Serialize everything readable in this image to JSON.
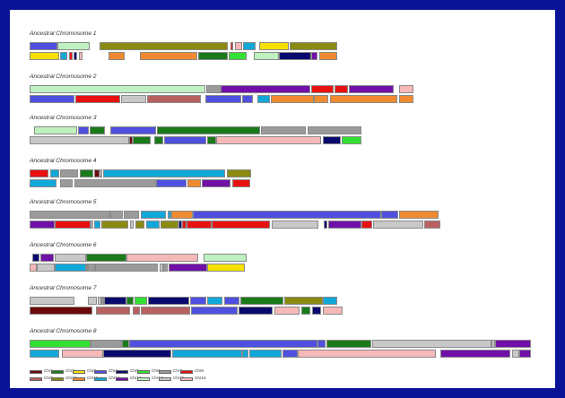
{
  "colors": {
    "Chr1": "#6b0a0a",
    "Chr2": "#1a7a1a",
    "Chr3": "#f5e000",
    "Chr4": "#4f4fe0",
    "Chr5": "#0a0a6e",
    "Chr6": "#33e033",
    "Chr7": "#9a9a9a",
    "Chr8": "#e81010",
    "Chr9": "#b86060",
    "Chr10": "#8a8a10",
    "Chr11": "#f08a30",
    "Chr12": "#10a8d8",
    "Chr13": "#7010a8",
    "Chr14": "#bff0bf",
    "Chr15": "#c8c8c8",
    "Chr16": "#f7b8b8"
  },
  "chromosomes": [
    {
      "title": "Ancestral Chromosome 1",
      "rows": [
        [
          [
            "Chr4",
            0,
            31
          ],
          [
            "Chr14",
            31,
            36
          ],
          [
            "Chr10",
            78,
            143
          ],
          [
            "Chr8",
            224,
            3
          ],
          [
            "Chr16",
            229,
            8
          ],
          [
            "Chr12",
            238,
            14
          ],
          [
            "Chr3",
            256,
            33
          ],
          [
            "Chr10",
            290,
            53
          ]
        ],
        [
          [
            "Chr3",
            0,
            33
          ],
          [
            "Chr12",
            34,
            8
          ],
          [
            "Chr8",
            44,
            4
          ],
          [
            "Chr5",
            49,
            4
          ],
          [
            "Chr16",
            55,
            4
          ],
          [
            "Chr11",
            88,
            18
          ],
          [
            "Chr11",
            123,
            64
          ],
          [
            "Chr2",
            188,
            33
          ],
          [
            "Chr6",
            222,
            20
          ],
          [
            "Chr14",
            250,
            28
          ],
          [
            "Chr5",
            278,
            36
          ],
          [
            "Chr13",
            314,
            7
          ],
          [
            "Chr11",
            323,
            20
          ]
        ]
      ]
    },
    {
      "title": "Ancestral Chromosome 2",
      "rows": [
        [
          [
            "Chr14",
            0,
            196
          ],
          [
            "Chr7",
            197,
            16
          ],
          [
            "Chr13",
            213,
            100
          ],
          [
            "Chr8",
            314,
            25
          ],
          [
            "Chr8",
            340,
            15
          ],
          [
            "Chr13",
            356,
            50
          ],
          [
            "Chr16",
            412,
            16
          ]
        ],
        [
          [
            "Chr4",
            0,
            50
          ],
          [
            "Chr8",
            51,
            50
          ],
          [
            "Chr15",
            102,
            28
          ],
          [
            "Chr9",
            131,
            60
          ],
          [
            "Chr4",
            196,
            40
          ],
          [
            "Chr4",
            237,
            12
          ],
          [
            "Chr12",
            254,
            14
          ],
          [
            "Chr11",
            269,
            48
          ],
          [
            "Chr11",
            317,
            16
          ],
          [
            "Chr11",
            335,
            75
          ],
          [
            "Chr11",
            412,
            16
          ]
        ]
      ]
    },
    {
      "title": "Ancestral Chromosome 3",
      "rows": [
        [
          [
            "Chr14",
            5,
            48
          ],
          [
            "Chr4",
            54,
            12
          ],
          [
            "Chr2",
            67,
            17
          ],
          [
            "Chr4",
            90,
            51
          ],
          [
            "Chr2",
            142,
            115
          ],
          [
            "Chr7",
            258,
            50
          ],
          [
            "Chr7",
            310,
            60
          ]
        ],
        [
          [
            "Chr15",
            0,
            111
          ],
          [
            "Chr1",
            111,
            4
          ],
          [
            "Chr2",
            115,
            20
          ],
          [
            "Chr2",
            139,
            10
          ],
          [
            "Chr4",
            150,
            47
          ],
          [
            "Chr2",
            198,
            10
          ],
          [
            "Chr16",
            208,
            117
          ],
          [
            "Chr5",
            327,
            20
          ],
          [
            "Chr6",
            348,
            22
          ]
        ]
      ]
    },
    {
      "title": "Ancestral Chromosome 4",
      "rows": [
        [
          [
            "Chr8",
            0,
            21
          ],
          [
            "Chr12",
            23,
            10
          ],
          [
            "Chr7",
            34,
            20
          ],
          [
            "Chr2",
            56,
            15
          ],
          [
            "Chr1",
            72,
            6
          ],
          [
            "Chr15",
            78,
            3
          ],
          [
            "Chr12",
            82,
            136
          ],
          [
            "Chr10",
            220,
            27
          ]
        ],
        [
          [
            "Chr12",
            0,
            30
          ],
          [
            "Chr7",
            34,
            14
          ],
          [
            "Chr7",
            50,
            91
          ],
          [
            "Chr4",
            141,
            34
          ],
          [
            "Chr11",
            176,
            15
          ],
          [
            "Chr13",
            192,
            32
          ],
          [
            "Chr8",
            226,
            20
          ]
        ]
      ]
    },
    {
      "title": "Ancestral Chromosome 5",
      "rows": [
        [
          [
            "Chr7",
            0,
            90
          ],
          [
            "Chr7",
            90,
            14
          ],
          [
            "Chr7",
            105,
            17
          ],
          [
            "Chr12",
            124,
            28
          ],
          [
            "Chr12",
            154,
            4
          ],
          [
            "Chr11",
            158,
            24
          ],
          [
            "Chr4",
            182,
            210
          ],
          [
            "Chr4",
            392,
            19
          ],
          [
            "Chr11",
            412,
            44
          ]
        ],
        [
          [
            "Chr13",
            0,
            28
          ],
          [
            "Chr8",
            28,
            40
          ],
          [
            "Chr15",
            68,
            3
          ],
          [
            "Chr12",
            72,
            7
          ],
          [
            "Chr10",
            80,
            30
          ],
          [
            "Chr15",
            112,
            4
          ],
          [
            "Chr10",
            118,
            10
          ],
          [
            "Chr12",
            130,
            15
          ],
          [
            "Chr10",
            146,
            20
          ],
          [
            "Chr5",
            166,
            4
          ],
          [
            "Chr8",
            170,
            5
          ],
          [
            "Chr8",
            175,
            28
          ],
          [
            "Chr8",
            203,
            65
          ],
          [
            "Chr15",
            270,
            52
          ],
          [
            "Chr5",
            328,
            4
          ],
          [
            "Chr13",
            333,
            37
          ],
          [
            "Chr8",
            370,
            12
          ],
          [
            "Chr15",
            383,
            56
          ],
          [
            "Chr9",
            440,
            18
          ]
        ]
      ]
    },
    {
      "title": "Ancestral Chromosome 6",
      "rows": [
        [
          [
            "Chr5",
            3,
            8
          ],
          [
            "Chr13",
            12,
            15
          ],
          [
            "Chr15",
            28,
            35
          ],
          [
            "Chr2",
            63,
            45
          ],
          [
            "Chr16",
            108,
            80
          ],
          [
            "Chr14",
            194,
            48
          ]
        ],
        [
          [
            "Chr16",
            0,
            8
          ],
          [
            "Chr15",
            8,
            20
          ],
          [
            "Chr12",
            28,
            35
          ],
          [
            "Chr7",
            63,
            2
          ],
          [
            "Chr7",
            65,
            8
          ],
          [
            "Chr7",
            73,
            70
          ],
          [
            "Chr15",
            145,
            4
          ],
          [
            "Chr7",
            149,
            5
          ],
          [
            "Chr13",
            155,
            43
          ],
          [
            "Chr3",
            198,
            42
          ]
        ]
      ]
    },
    {
      "title": "Ancestral Chromosome 7",
      "rows": [
        [
          [
            "Chr15",
            0,
            50
          ],
          [
            "Chr15",
            65,
            10
          ],
          [
            "Chr15",
            76,
            4
          ],
          [
            "Chr7",
            80,
            3
          ],
          [
            "Chr5",
            83,
            25
          ],
          [
            "Chr2",
            108,
            8
          ],
          [
            "Chr6",
            117,
            14
          ],
          [
            "Chr5",
            132,
            46
          ],
          [
            "Chr4",
            179,
            18
          ],
          [
            "Chr12",
            198,
            17
          ],
          [
            "Chr4",
            217,
            17
          ],
          [
            "Chr2",
            235,
            48
          ],
          [
            "Chr10",
            284,
            43
          ],
          [
            "Chr12",
            327,
            16
          ]
        ],
        [
          [
            "Chr1",
            0,
            70
          ],
          [
            "Chr9",
            74,
            38
          ],
          [
            "Chr9",
            115,
            8
          ],
          [
            "Chr9",
            124,
            55
          ],
          [
            "Chr4",
            180,
            52
          ],
          [
            "Chr5",
            233,
            38
          ],
          [
            "Chr16",
            273,
            28
          ],
          [
            "Chr2",
            303,
            10
          ],
          [
            "Chr5",
            315,
            10
          ],
          [
            "Chr16",
            327,
            22
          ]
        ]
      ]
    },
    {
      "title": "Ancestral Chromosome 8",
      "rows": [
        [
          [
            "Chr6",
            0,
            68
          ],
          [
            "Chr7",
            68,
            35
          ],
          [
            "Chr2",
            103,
            8
          ],
          [
            "Chr4",
            111,
            210
          ],
          [
            "Chr4",
            321,
            9
          ],
          [
            "Chr2",
            331,
            50
          ],
          [
            "Chr15",
            382,
            133
          ],
          [
            "Chr15",
            515,
            4
          ],
          [
            "Chr13",
            519,
            40
          ]
        ],
        [
          [
            "Chr12",
            0,
            33
          ],
          [
            "Chr16",
            36,
            46
          ],
          [
            "Chr5",
            82,
            76
          ],
          [
            "Chr12",
            159,
            78
          ],
          [
            "Chr12",
            237,
            7
          ],
          [
            "Chr12",
            245,
            36
          ],
          [
            "Chr4",
            282,
            17
          ],
          [
            "Chr16",
            299,
            154
          ],
          [
            "Chr13",
            458,
            78
          ],
          [
            "Chr15",
            538,
            8
          ],
          [
            "Chr13",
            546,
            13
          ]
        ]
      ]
    }
  ],
  "legend": [
    [
      [
        "Chr1",
        "Chr1"
      ],
      [
        "Chr2",
        "Chr2"
      ],
      [
        "Chr3",
        "Chr3"
      ],
      [
        "Chr4",
        "Chr4"
      ],
      [
        "Chr5",
        "Chr5"
      ],
      [
        "Chr6",
        "Chr6"
      ],
      [
        "Chr7",
        "Chr7"
      ],
      [
        "Chr8",
        "Chr8"
      ]
    ],
    [
      [
        "Chr9",
        "Chr9"
      ],
      [
        "Chr10",
        "Chr10"
      ],
      [
        "Chr11",
        "Chr11"
      ],
      [
        "Chr12",
        "Chr12"
      ],
      [
        "Chr13",
        "Chr13"
      ],
      [
        "Chr14",
        "Chr14"
      ],
      [
        "Chr15",
        "Chr15"
      ],
      [
        "Chr16",
        "Chr16"
      ]
    ]
  ]
}
